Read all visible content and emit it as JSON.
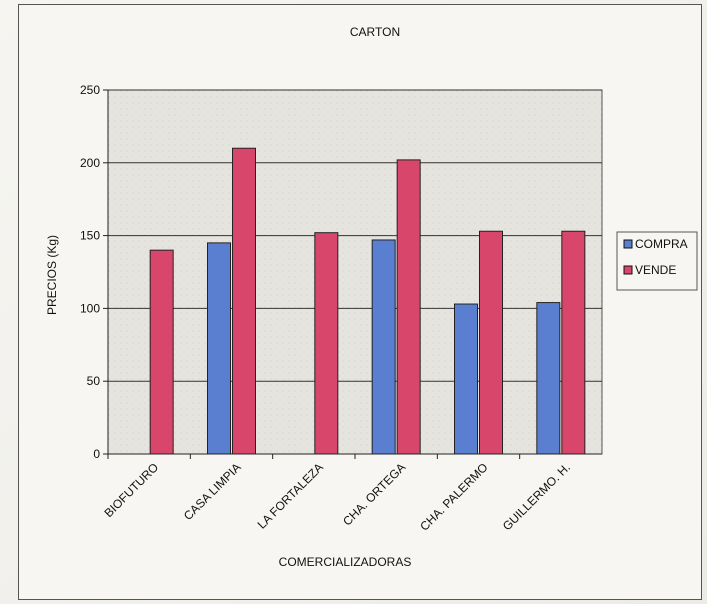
{
  "chart_data": {
    "type": "bar",
    "title": "CARTON",
    "xlabel": "COMERCIALIZADORAS",
    "ylabel": "PRECIOS (Kg)",
    "categories": [
      "BIOFUTURO",
      "CASA LIMPIA",
      "LA FORTALEZA",
      "CHA. ORTEGA",
      "CHA. PALERMO",
      "GUILLERMO. H."
    ],
    "series": [
      {
        "name": "COMPRA",
        "color": "#5b7fd0",
        "values": [
          0,
          145,
          0,
          147,
          103,
          104
        ]
      },
      {
        "name": "VENDE",
        "color": "#d9466b",
        "values": [
          140,
          210,
          152,
          202,
          153,
          153
        ]
      }
    ],
    "ylim": [
      0,
      250
    ],
    "yticks": [
      0,
      50,
      100,
      150,
      200,
      250
    ],
    "grid": true,
    "legend": "right"
  }
}
